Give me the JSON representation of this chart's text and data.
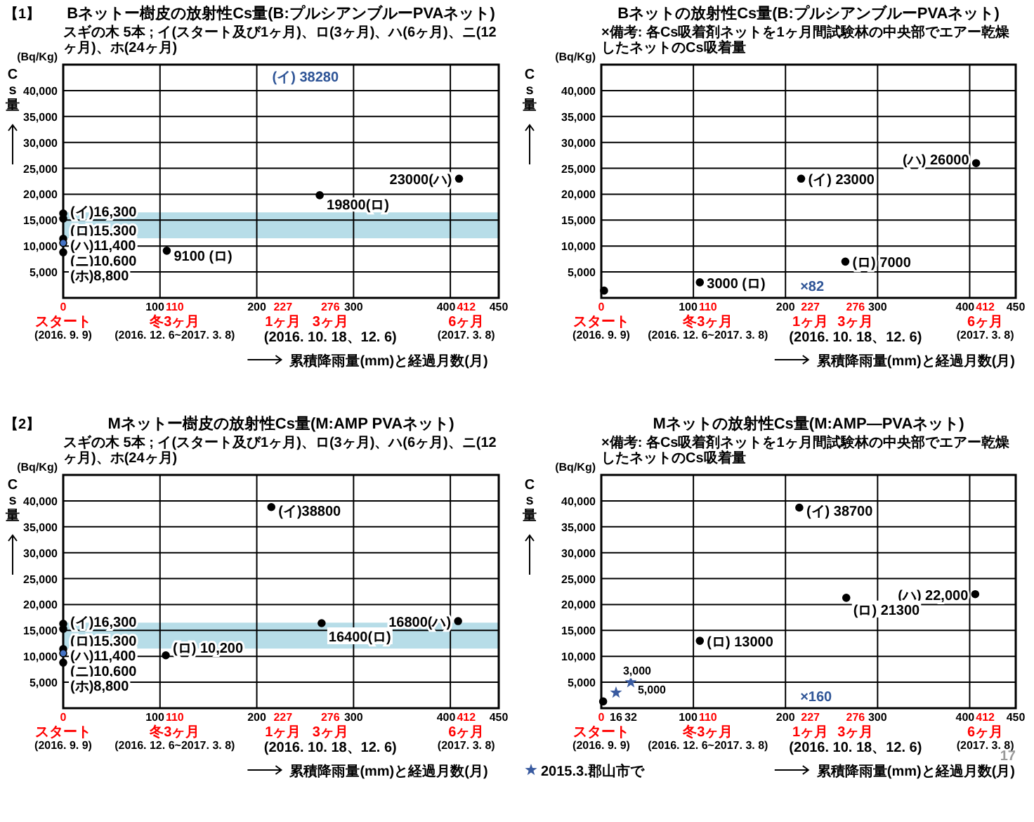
{
  "chart_data": [
    {
      "type": "scatter",
      "title": "Bネットー樹皮の放射性Cs量(B:プルシアンブルーPVAネット)",
      "subtitle": "スギの木 5本 ; イ(スタート及び1ヶ月)、ロ(3ヶ月)、ハ(6ヶ月)、ニ(12ヶ月)、ホ(24ヶ月)",
      "xlabel": "累積降雨量(mm)と経過月数(月)",
      "ylabel": "Cs量",
      "annotations": [
        "【1】",
        "(Bq/Kg)",
        "(イ) 38280"
      ],
      "xlim": [
        0,
        450
      ],
      "ylim": [
        0,
        45000
      ],
      "xticks": [
        {
          "value": 0,
          "label": "0\nスタート\n(2016. 9. 9)"
        },
        100,
        {
          "value": 110,
          "label": "110\n冬3ヶ月\n(2016. 12. 6~2017. 3. 8)"
        },
        200,
        {
          "value": 227,
          "label": "227\n1ヶ月"
        },
        {
          "value": 276,
          "label": "276\n3ヶ月\n(2016. 10. 18、12. 6)"
        },
        300,
        400,
        {
          "value": 412,
          "label": "412\n6ヶ月\n(2017. 3. 8)"
        },
        450
      ],
      "yticks": [
        {
          "value": 5000,
          "label": "5,000"
        },
        {
          "value": 10000,
          "label": "10,000"
        },
        {
          "value": 15000,
          "label": "15,000"
        },
        {
          "value": 20000,
          "label": "20,000"
        },
        {
          "value": 25000,
          "label": "25,000"
        },
        {
          "value": 30000,
          "label": "30,000"
        },
        {
          "value": 35000,
          "label": "35,000"
        },
        {
          "value": 40000,
          "label": "40,000"
        }
      ],
      "grid": true,
      "marker": "circle",
      "bands": [
        {
          "axis": "y",
          "from": 11500,
          "to": 16500,
          "color": "#b7dde8"
        }
      ],
      "series": [
        {
          "color": "#000000",
          "colors": [
            "#000000",
            "#000000",
            "#000000",
            "#4472c4",
            "#000000",
            "#000000",
            "#000000",
            "#000000"
          ],
          "x": [
            0,
            0,
            0,
            0,
            0,
            107,
            265,
            409
          ],
          "values": [
            16300,
            15300,
            11400,
            10600,
            8800,
            9100,
            19800,
            23000
          ],
          "value_labels": [
            "(イ)16,300",
            "(ロ)15,300",
            "(ハ)11,400",
            "(ニ)10,600",
            "(ホ)8,800",
            "9100 (ロ)",
            "19800(ロ)",
            "23000(ハ)"
          ]
        }
      ]
    },
    {
      "type": "scatter",
      "title": "Bネットの放射性Cs量(B:プルシアンブルーPVAネット)",
      "subtitle": "×備考: 各Cs吸着剤ネットを1ヶ月間試験林の中央部でエアー乾燥したネットのCs吸着量",
      "xlabel": "累積降雨量(mm)と経過月数(月)",
      "ylabel": "Cs量",
      "annotations": [
        "(Bq/Kg)",
        "×82"
      ],
      "xlim": [
        0,
        450
      ],
      "ylim": [
        0,
        45000
      ],
      "xticks": [
        {
          "value": 0,
          "label": "0\nスタート\n(2016. 9. 9)"
        },
        100,
        {
          "value": 110,
          "label": "110\n冬3ヶ月\n(2016. 12. 6~2017. 3. 8)"
        },
        200,
        {
          "value": 227,
          "label": "227\n1ヶ月"
        },
        {
          "value": 276,
          "label": "276\n3ヶ月\n(2016. 10. 18、12. 6)"
        },
        300,
        400,
        {
          "value": 412,
          "label": "412\n6ヶ月\n(2017. 3. 8)"
        },
        450
      ],
      "yticks": [
        {
          "value": 5000,
          "label": "5,000"
        },
        {
          "value": 10000,
          "label": "10,000"
        },
        {
          "value": 15000,
          "label": "15,000"
        },
        {
          "value": 20000,
          "label": "20,000"
        },
        {
          "value": 25000,
          "label": "25,000"
        },
        {
          "value": 30000,
          "label": "30,000"
        },
        {
          "value": 35000,
          "label": "35,000"
        },
        {
          "value": 40000,
          "label": "40,000"
        }
      ],
      "grid": true,
      "marker": "circle",
      "series": [
        {
          "color": "#000000",
          "x": [
            3,
            107,
            217,
            265,
            407
          ],
          "values": [
            1400,
            3000,
            23000,
            7000,
            26000
          ],
          "value_labels": [
            null,
            "3000 (ロ)",
            "(イ) 23000",
            "(ロ) 7000",
            "(ハ) 26000"
          ]
        }
      ]
    },
    {
      "type": "scatter",
      "title": "Mネットー樹皮の放射性Cs量(M:AMP PVAネット)",
      "subtitle": "スギの木 5本 ; イ(スタート及び1ヶ月)、ロ(3ヶ月)、ハ(6ヶ月)、ニ(12ヶ月)、ホ(24ヶ月)",
      "xlabel": "累積降雨量(mm)と経過月数(月)",
      "ylabel": "Cs量",
      "annotations": [
        "【2】",
        "(Bq/Kg)"
      ],
      "xlim": [
        0,
        450
      ],
      "ylim": [
        0,
        45000
      ],
      "xticks": [
        {
          "value": 0,
          "label": "0\nスタート\n(2016. 9. 9)"
        },
        100,
        {
          "value": 110,
          "label": "110\n冬3ヶ月\n(2016. 12. 6~2017. 3. 8)"
        },
        200,
        {
          "value": 227,
          "label": "227\n1ヶ月"
        },
        {
          "value": 276,
          "label": "276\n3ヶ月\n(2016. 10. 18、12. 6)"
        },
        300,
        400,
        {
          "value": 412,
          "label": "412\n6ヶ月\n(2017. 3. 8)"
        },
        450
      ],
      "yticks": [
        {
          "value": 5000,
          "label": "5,000"
        },
        {
          "value": 10000,
          "label": "10,000"
        },
        {
          "value": 15000,
          "label": "15,000"
        },
        {
          "value": 20000,
          "label": "20,000"
        },
        {
          "value": 25000,
          "label": "25,000"
        },
        {
          "value": 30000,
          "label": "30,000"
        },
        {
          "value": 35000,
          "label": "35,000"
        },
        {
          "value": 40000,
          "label": "40,000"
        }
      ],
      "grid": true,
      "marker": "circle",
      "bands": [
        {
          "axis": "y",
          "from": 11500,
          "to": 16500,
          "color": "#b7dde8"
        }
      ],
      "series": [
        {
          "color": "#000000",
          "colors": [
            "#000000",
            "#000000",
            "#000000",
            "#4472c4",
            "#000000",
            "#000000",
            "#000000",
            "#000000",
            "#000000"
          ],
          "x": [
            0,
            0,
            0,
            0,
            0,
            106,
            215,
            267,
            408
          ],
          "values": [
            16300,
            15300,
            11400,
            10600,
            8800,
            10200,
            38800,
            16400,
            16800
          ],
          "value_labels": [
            "(イ)16,300",
            "(ロ)15,300",
            "(ハ)11,400",
            "(ニ)10,600",
            "(ホ)8,800",
            "(ロ) 10,200",
            "(イ)38800",
            "16400(ロ)",
            "16800(ハ)"
          ]
        }
      ]
    },
    {
      "type": "scatter",
      "title": "Mネットの放射性Cs量(M:AMP—PVAネット)",
      "subtitle": "×備考: 各Cs吸着剤ネットを1ヶ月間試験林の中央部でエアー乾燥したネットのCs吸着量",
      "xlabel": "累積降雨量(mm)と経過月数(月)",
      "ylabel": "Cs量",
      "annotations": [
        "(Bq/Kg)",
        "17",
        "×160"
      ],
      "xlim": [
        0,
        450
      ],
      "ylim": [
        0,
        45000
      ],
      "xticks": [
        {
          "value": 0,
          "label": "0\nスタート\n(2016. 9. 9)"
        },
        {
          "value": 16,
          "label": "16"
        },
        {
          "value": 32,
          "label": "32"
        },
        100,
        {
          "value": 110,
          "label": "110\n冬3ヶ月\n(2016. 12. 6~2017. 3. 8)"
        },
        200,
        {
          "value": 227,
          "label": "227\n1ヶ月"
        },
        {
          "value": 276,
          "label": "276\n3ヶ月\n(2016. 10. 18、12. 6)"
        },
        300,
        400,
        {
          "value": 412,
          "label": "412\n6ヶ月\n(2017. 3. 8)"
        },
        450
      ],
      "yticks": [
        {
          "value": 5000,
          "label": "5,000"
        },
        {
          "value": 10000,
          "label": "10,000"
        },
        {
          "value": 15000,
          "label": "15,000"
        },
        {
          "value": 20000,
          "label": "20,000"
        },
        {
          "value": 25000,
          "label": "25,000"
        },
        {
          "value": 30000,
          "label": "30,000"
        },
        {
          "value": 35000,
          "label": "35,000"
        },
        {
          "value": 40000,
          "label": "40,000"
        }
      ],
      "grid": true,
      "marker": "circle",
      "legend": "bottom left",
      "series": [
        {
          "color": "#000000",
          "x": [
            2,
            107,
            215,
            266,
            406
          ],
          "values": [
            1300,
            13000,
            38700,
            21300,
            22000
          ],
          "value_labels": [
            null,
            "(ロ) 13000",
            "(イ) 38700",
            "(ロ) 21300",
            "(ハ) 22,000"
          ]
        },
        {
          "name": "2015.3.郡山市で",
          "color": "#3a5ba0",
          "marker": "star",
          "x": [
            16,
            32
          ],
          "values": [
            3000,
            5000
          ],
          "value_labels": [
            "3,000",
            "5,000"
          ]
        }
      ]
    }
  ]
}
